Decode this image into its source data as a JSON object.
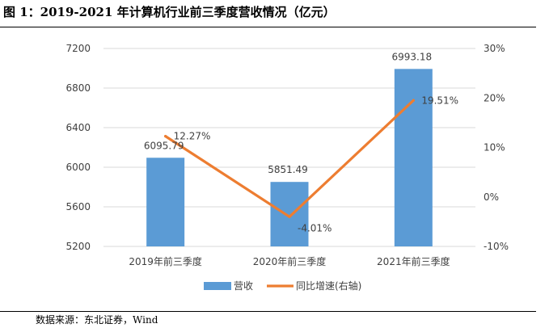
{
  "header": {
    "title": "图 1：2019-2021 年计算机行业前三季度营收情况（亿元）"
  },
  "footer": {
    "source": "数据来源：东北证券，Wind"
  },
  "colors": {
    "bar": "#5b9bd5",
    "line": "#ed7d31",
    "grid": "#d9d9d9",
    "text": "#404040"
  },
  "chart_data": {
    "type": "bar",
    "title": "2019-2021 年计算机行业前三季度营收情况（亿元）",
    "categories": [
      "2019年前三季度",
      "2020年前三季度",
      "2021年前三季度"
    ],
    "series": [
      {
        "name": "营收",
        "type": "bar",
        "axis": "left",
        "values": [
          6095.79,
          5851.49,
          6993.18
        ],
        "labels": [
          "6095.79",
          "5851.49",
          "6993.18"
        ]
      },
      {
        "name": "同比增速(右轴)",
        "type": "line",
        "axis": "right",
        "values": [
          12.27,
          -4.01,
          19.51
        ],
        "labels": [
          "12.27%",
          "-4.01%",
          "19.51%"
        ]
      }
    ],
    "left_axis": {
      "ylim": [
        5200,
        7200
      ],
      "ticks": [
        5200,
        5600,
        6000,
        6400,
        6800,
        7200
      ]
    },
    "right_axis": {
      "ylim": [
        -10,
        30
      ],
      "ticks": [
        "-10%",
        "0%",
        "10%",
        "20%",
        "30%"
      ],
      "tick_values": [
        -10,
        0,
        10,
        20,
        30
      ]
    },
    "grid": true,
    "legend": "bottom-center"
  }
}
